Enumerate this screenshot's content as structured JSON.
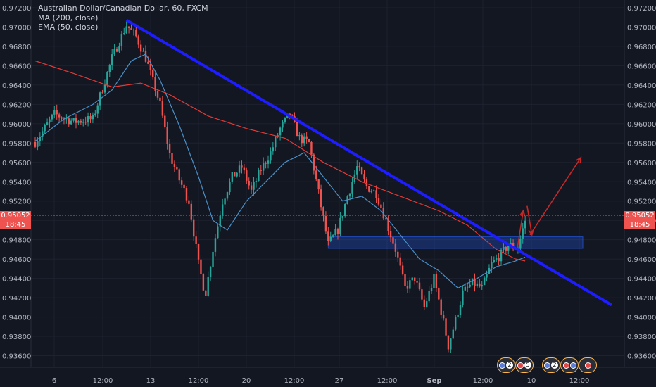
{
  "legend": {
    "symbol": "Australian Dollar/Canadian Dollar, 60, FXCM",
    "ma": "MA (200, close)",
    "ema": "EMA (50, close)"
  },
  "price_tags": {
    "left_price": "0.95052",
    "left_time": "18:45",
    "right_price": "0.95052",
    "right_time": "18:45"
  },
  "colors": {
    "background": "#131722",
    "trendline": "#1d1dff",
    "ma200": "#e53935",
    "ema50": "#4a90c8",
    "up_candle": "#26a69a",
    "down_candle": "#ef5350",
    "zone": "#2962ff",
    "arrow": "#c62828"
  },
  "events": {
    "group1": {
      "count_a": "2",
      "count_b": "5"
    },
    "group2": {
      "count_a": "2"
    }
  },
  "chart_data": {
    "type": "candlestick",
    "title": "Australian Dollar/Canadian Dollar, 60, FXCM",
    "interval": "60",
    "xaxis_labels": [
      "6",
      "12:00",
      "13",
      "12:00",
      "20",
      "12:00",
      "27",
      "12:00",
      "Sep",
      "12:00",
      "10",
      "12:00"
    ],
    "yaxis_ticks": [
      "0.97200",
      "0.97000",
      "0.96800",
      "0.96600",
      "0.96400",
      "0.96200",
      "0.96000",
      "0.95800",
      "0.95600",
      "0.95400",
      "0.95200",
      "0.95000",
      "0.94800",
      "0.94600",
      "0.94400",
      "0.94200",
      "0.94000",
      "0.93800",
      "0.93600"
    ],
    "ylim": [
      0.9348,
      0.9728
    ],
    "last_price": 0.95052,
    "price_path": [
      [
        0,
        0.9581
      ],
      [
        2,
        0.961
      ],
      [
        4,
        0.9602
      ],
      [
        6,
        0.9605
      ],
      [
        8,
        0.9668
      ],
      [
        9.5,
        0.9702
      ],
      [
        10.5,
        0.969
      ],
      [
        11.5,
        0.9668
      ],
      [
        13,
        0.962
      ],
      [
        14,
        0.9568
      ],
      [
        15,
        0.9542
      ],
      [
        16,
        0.952
      ],
      [
        17,
        0.9455
      ],
      [
        17.7,
        0.9423
      ],
      [
        18.5,
        0.947
      ],
      [
        19.5,
        0.952
      ],
      [
        20.5,
        0.9545
      ],
      [
        21.5,
        0.9555
      ],
      [
        22.5,
        0.953
      ],
      [
        23.5,
        0.9553
      ],
      [
        24.5,
        0.957
      ],
      [
        25.5,
        0.9595
      ],
      [
        26.5,
        0.961
      ],
      [
        27.5,
        0.9585
      ],
      [
        28.5,
        0.958
      ],
      [
        29.5,
        0.9528
      ],
      [
        30.5,
        0.9475
      ],
      [
        31.5,
        0.949
      ],
      [
        32.5,
        0.9525
      ],
      [
        33.5,
        0.9555
      ],
      [
        34.5,
        0.9535
      ],
      [
        35.5,
        0.9528
      ],
      [
        36.5,
        0.95
      ],
      [
        37.5,
        0.947
      ],
      [
        38.5,
        0.943
      ],
      [
        39.5,
        0.944
      ],
      [
        40.5,
        0.941
      ],
      [
        41.5,
        0.944
      ],
      [
        42.5,
        0.9395
      ],
      [
        43,
        0.937
      ],
      [
        43.7,
        0.9395
      ],
      [
        44.5,
        0.9425
      ],
      [
        45.5,
        0.9435
      ],
      [
        46.5,
        0.943
      ],
      [
        47.5,
        0.9455
      ],
      [
        48.5,
        0.9465
      ],
      [
        49.3,
        0.9475
      ],
      [
        50.2,
        0.947
      ],
      [
        51,
        0.95
      ]
    ],
    "series": [
      {
        "name": "MA (200, close)",
        "points": [
          [
            0,
            0.9665
          ],
          [
            4,
            0.9652
          ],
          [
            8,
            0.9638
          ],
          [
            11,
            0.9642
          ],
          [
            14,
            0.963
          ],
          [
            18,
            0.9608
          ],
          [
            22,
            0.9595
          ],
          [
            26,
            0.9585
          ],
          [
            30,
            0.956
          ],
          [
            34,
            0.954
          ],
          [
            38,
            0.9525
          ],
          [
            42,
            0.951
          ],
          [
            45,
            0.9495
          ],
          [
            48,
            0.947
          ],
          [
            50,
            0.946
          ],
          [
            51,
            0.9458
          ]
        ]
      },
      {
        "name": "EMA (50, close)",
        "points": [
          [
            0,
            0.9582
          ],
          [
            3,
            0.9605
          ],
          [
            6,
            0.962
          ],
          [
            8,
            0.9635
          ],
          [
            10,
            0.9665
          ],
          [
            11.5,
            0.9672
          ],
          [
            13,
            0.9645
          ],
          [
            15,
            0.9598
          ],
          [
            17,
            0.9545
          ],
          [
            18.5,
            0.95
          ],
          [
            20,
            0.949
          ],
          [
            22,
            0.952
          ],
          [
            24,
            0.954
          ],
          [
            26,
            0.956
          ],
          [
            28,
            0.957
          ],
          [
            30,
            0.9545
          ],
          [
            32,
            0.952
          ],
          [
            34,
            0.9525
          ],
          [
            36,
            0.951
          ],
          [
            38,
            0.9485
          ],
          [
            40,
            0.946
          ],
          [
            42,
            0.9448
          ],
          [
            44,
            0.943
          ],
          [
            46,
            0.944
          ],
          [
            48,
            0.9452
          ],
          [
            50,
            0.9458
          ],
          [
            51,
            0.9462
          ]
        ]
      }
    ],
    "trendline": {
      "from": [
        9.5,
        0.97072
      ],
      "to": [
        60,
        0.94124
      ]
    },
    "support_zone": {
      "x0": 30.5,
      "x1": 57,
      "y_low": 0.9471,
      "y_high": 0.9483
    },
    "projection_arrows": [
      {
        "from": [
          50.2,
          0.9472
        ],
        "to": [
          50.8,
          0.951
        ]
      },
      {
        "from": [
          51.5,
          0.9485
        ],
        "to": [
          56.8,
          0.9565
        ]
      },
      {
        "from": [
          51.2,
          0.9515
        ],
        "to": [
          51.7,
          0.9485
        ]
      }
    ]
  }
}
